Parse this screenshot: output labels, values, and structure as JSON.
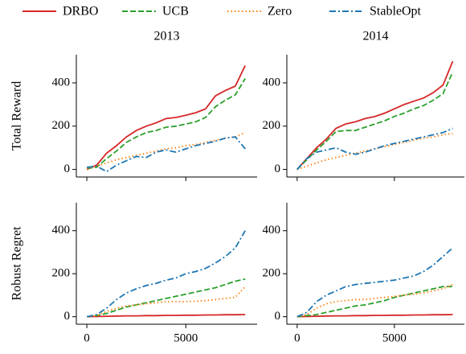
{
  "chart_data": [
    {
      "type": "line",
      "title": "2013",
      "y_label": "Total Reward",
      "x": [
        0,
        500,
        1000,
        1500,
        2000,
        2500,
        3000,
        3500,
        4000,
        4500,
        5000,
        5500,
        6000,
        6500,
        7000,
        7500,
        8000
      ],
      "xlim": [
        -530,
        8600
      ],
      "xticks": [
        0,
        5000
      ],
      "show_xtick_labels": false,
      "ylim": [
        -35,
        530
      ],
      "yticks": [
        0,
        200,
        400
      ],
      "series": [
        {
          "name": "DRBO",
          "color": "#d62728",
          "linestyle": "solid",
          "values": [
            0,
            20,
            75,
            110,
            150,
            180,
            200,
            215,
            235,
            240,
            250,
            262,
            280,
            340,
            365,
            385,
            480
          ]
        },
        {
          "name": "UCB",
          "color": "#2ca02c",
          "linestyle": "dashed",
          "values": [
            5,
            10,
            50,
            85,
            125,
            150,
            170,
            180,
            195,
            200,
            210,
            220,
            240,
            290,
            320,
            345,
            420
          ]
        },
        {
          "name": "Zero",
          "color": "#ff7f0e",
          "linestyle": "dotted",
          "values": [
            5,
            15,
            30,
            45,
            55,
            65,
            75,
            85,
            95,
            100,
            110,
            115,
            125,
            135,
            145,
            150,
            170
          ]
        },
        {
          "name": "StableOpt",
          "color": "#1f77b4",
          "linestyle": "dashdot",
          "values": [
            10,
            15,
            -10,
            20,
            40,
            60,
            55,
            80,
            90,
            80,
            95,
            110,
            120,
            130,
            145,
            150,
            95
          ]
        }
      ]
    },
    {
      "type": "line",
      "title": "2014",
      "x": [
        0,
        500,
        1000,
        1500,
        2000,
        2500,
        3000,
        3500,
        4000,
        4500,
        5000,
        5500,
        6000,
        6500,
        7000,
        7500,
        8000
      ],
      "xlim": [
        -530,
        8600
      ],
      "xticks": [
        0,
        5000
      ],
      "show_xtick_labels": false,
      "ylim": [
        -35,
        530
      ],
      "yticks": [
        0,
        200,
        400
      ],
      "series": [
        {
          "color": "#d62728",
          "linestyle": "solid",
          "values": [
            0,
            50,
            100,
            140,
            190,
            210,
            220,
            235,
            245,
            260,
            280,
            300,
            315,
            330,
            355,
            390,
            500
          ]
        },
        {
          "color": "#2ca02c",
          "linestyle": "dashed",
          "values": [
            0,
            45,
            90,
            130,
            175,
            180,
            180,
            195,
            210,
            225,
            245,
            260,
            280,
            295,
            320,
            350,
            450
          ]
        },
        {
          "color": "#ff7f0e",
          "linestyle": "dotted",
          "values": [
            0,
            15,
            30,
            45,
            55,
            65,
            75,
            85,
            95,
            105,
            115,
            125,
            135,
            145,
            150,
            160,
            165
          ]
        },
        {
          "color": "#1f77b4",
          "linestyle": "dashdot",
          "values": [
            0,
            50,
            80,
            90,
            100,
            80,
            70,
            80,
            95,
            110,
            120,
            130,
            140,
            150,
            160,
            170,
            190
          ]
        }
      ]
    },
    {
      "type": "line",
      "y_label": "Robust Regret",
      "x": [
        0,
        500,
        1000,
        1500,
        2000,
        2500,
        3000,
        3500,
        4000,
        4500,
        5000,
        5500,
        6000,
        6500,
        7000,
        7500,
        8000
      ],
      "xlim": [
        -530,
        8600
      ],
      "xticks": [
        0,
        5000
      ],
      "show_xtick_labels": true,
      "ylim": [
        -35,
        530
      ],
      "yticks": [
        0,
        200,
        400
      ],
      "series": [
        {
          "color": "#d62728",
          "linestyle": "solid",
          "values": [
            0,
            1,
            2,
            3,
            4,
            4,
            5,
            5,
            6,
            6,
            7,
            7,
            8,
            8,
            9,
            9,
            10
          ]
        },
        {
          "color": "#2ca02c",
          "linestyle": "dashed",
          "values": [
            0,
            5,
            15,
            30,
            45,
            55,
            65,
            75,
            85,
            95,
            105,
            115,
            125,
            135,
            150,
            165,
            175
          ]
        },
        {
          "color": "#ff7f0e",
          "linestyle": "dotted",
          "values": [
            0,
            5,
            25,
            40,
            50,
            55,
            60,
            65,
            70,
            70,
            70,
            72,
            75,
            80,
            85,
            90,
            140
          ]
        },
        {
          "color": "#1f77b4",
          "linestyle": "dashdot",
          "values": [
            0,
            10,
            40,
            80,
            110,
            130,
            145,
            155,
            170,
            180,
            200,
            210,
            225,
            250,
            280,
            320,
            400
          ]
        }
      ]
    },
    {
      "type": "line",
      "x": [
        0,
        500,
        1000,
        1500,
        2000,
        2500,
        3000,
        3500,
        4000,
        4500,
        5000,
        5500,
        6000,
        6500,
        7000,
        7500,
        8000
      ],
      "xlim": [
        -530,
        8600
      ],
      "xticks": [
        0,
        5000
      ],
      "show_xtick_labels": true,
      "ylim": [
        -35,
        530
      ],
      "yticks": [
        0,
        200,
        400
      ],
      "series": [
        {
          "color": "#d62728",
          "linestyle": "solid",
          "values": [
            0,
            1,
            2,
            3,
            4,
            4,
            5,
            5,
            6,
            6,
            7,
            7,
            8,
            8,
            9,
            9,
            10
          ]
        },
        {
          "color": "#2ca02c",
          "linestyle": "dashed",
          "values": [
            0,
            5,
            10,
            20,
            30,
            40,
            50,
            55,
            65,
            75,
            90,
            100,
            110,
            120,
            130,
            140,
            140
          ]
        },
        {
          "color": "#ff7f0e",
          "linestyle": "dotted",
          "values": [
            0,
            10,
            40,
            60,
            70,
            75,
            80,
            80,
            85,
            90,
            95,
            100,
            105,
            110,
            120,
            130,
            150
          ]
        },
        {
          "color": "#1f77b4",
          "linestyle": "dashdot",
          "values": [
            0,
            20,
            70,
            100,
            120,
            140,
            150,
            155,
            160,
            165,
            170,
            180,
            190,
            210,
            240,
            280,
            320
          ]
        }
      ]
    }
  ]
}
